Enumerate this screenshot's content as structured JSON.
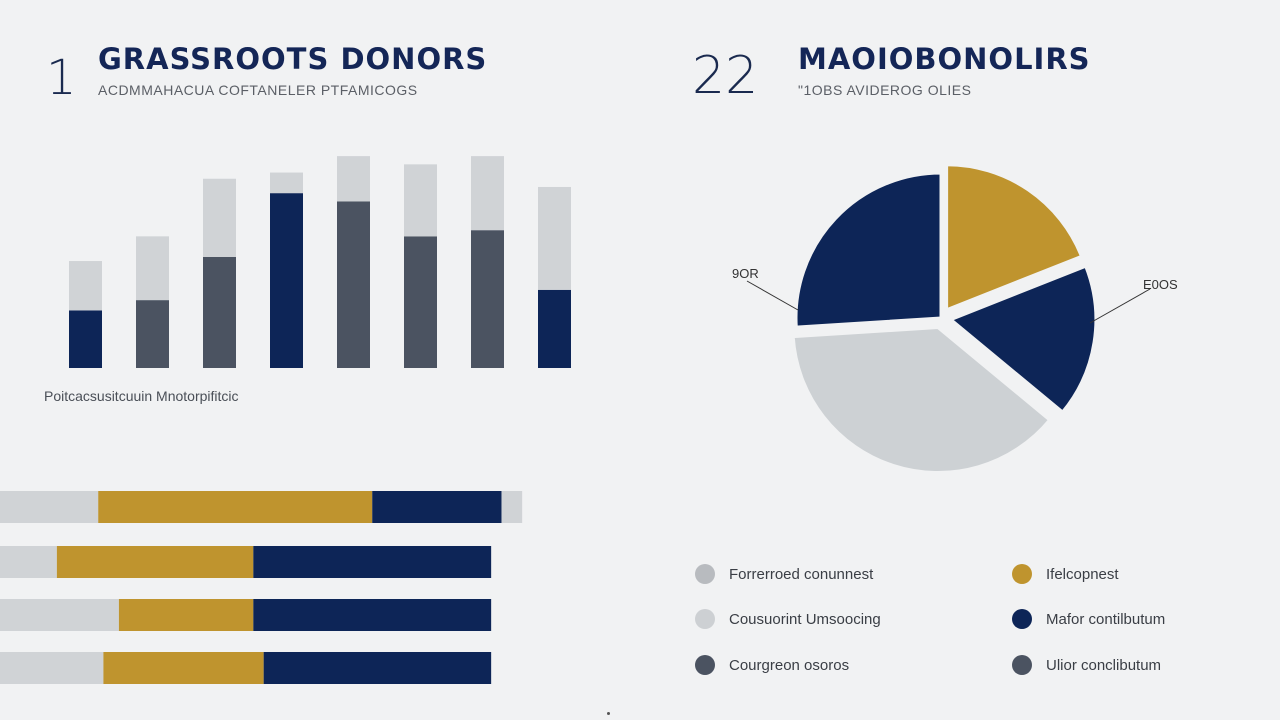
{
  "panel1": {
    "number": "1",
    "title": "GRASSROOTS DONORS",
    "subtitle": "ACDMMAHACUA COFTANELER PTFAMICOGS",
    "caption": "Poitcacsusitcuuin Mnotorpifitcic"
  },
  "panel2": {
    "number": "22",
    "title": "MAOIOBONOLIRS",
    "subtitle": "\"1OBS AVIDEROG OLIES",
    "label_left": "9OR",
    "label_right": "E0OS"
  },
  "colors": {
    "navy": "#0d2557",
    "slate": "#4b5361",
    "gold": "#bf942e",
    "light": "#d0d3d6",
    "light2": "#cdd1d4",
    "background": "#f1f2f3"
  },
  "chart_data": [
    {
      "type": "bar",
      "stacked": true,
      "categories": [
        "",
        "",
        "",
        "",
        "",
        "",
        "",
        ""
      ],
      "series": [
        {
          "values": [
            28,
            33,
            54,
            85,
            81,
            64,
            67,
            38
          ],
          "colors": [
            "navy",
            "slate",
            "slate",
            "navy",
            "slate",
            "slate",
            "slate",
            "navy"
          ]
        },
        {
          "values": [
            24,
            31,
            38,
            10,
            22,
            35,
            36,
            50
          ],
          "color": "light"
        }
      ],
      "ylim": [
        0,
        105
      ],
      "grid": false
    },
    {
      "type": "pie",
      "slices": [
        {
          "value": 19,
          "color": "gold",
          "exploded": true
        },
        {
          "value": 17,
          "color": "navy",
          "exploded": true
        },
        {
          "value": 38,
          "color": "light2",
          "exploded": true
        },
        {
          "value": 26,
          "color": "navy",
          "exploded": false
        }
      ],
      "start_angle_deg": 0
    },
    {
      "type": "bar",
      "orientation": "horizontal",
      "stacked": true,
      "categories": [
        "",
        "",
        "",
        ""
      ],
      "series": [
        {
          "values": [
            19,
            11,
            23,
            20
          ],
          "color": "light"
        },
        {
          "values": [
            53,
            38,
            26,
            31
          ],
          "color": "gold"
        },
        {
          "values": [
            25,
            46,
            46,
            44
          ],
          "color": "navy"
        },
        {
          "values": [
            4,
            0,
            0,
            0
          ],
          "color": "light"
        }
      ],
      "xlim": [
        0,
        100
      ]
    }
  ],
  "legend": [
    {
      "label": "Forrerroed conunnest",
      "color": "#b8bbbf"
    },
    {
      "label": "Ifelcopnest",
      "color": "#bf942e"
    },
    {
      "label": "Cousuorint Umsoocing",
      "color": "#cdd0d3"
    },
    {
      "label": "Mafor contilbutum",
      "color": "#0d2557"
    },
    {
      "label": "Courgreon osoros",
      "color": "#4b5361"
    },
    {
      "label": "Ulior conclibutum",
      "color": "#4b5361"
    }
  ]
}
